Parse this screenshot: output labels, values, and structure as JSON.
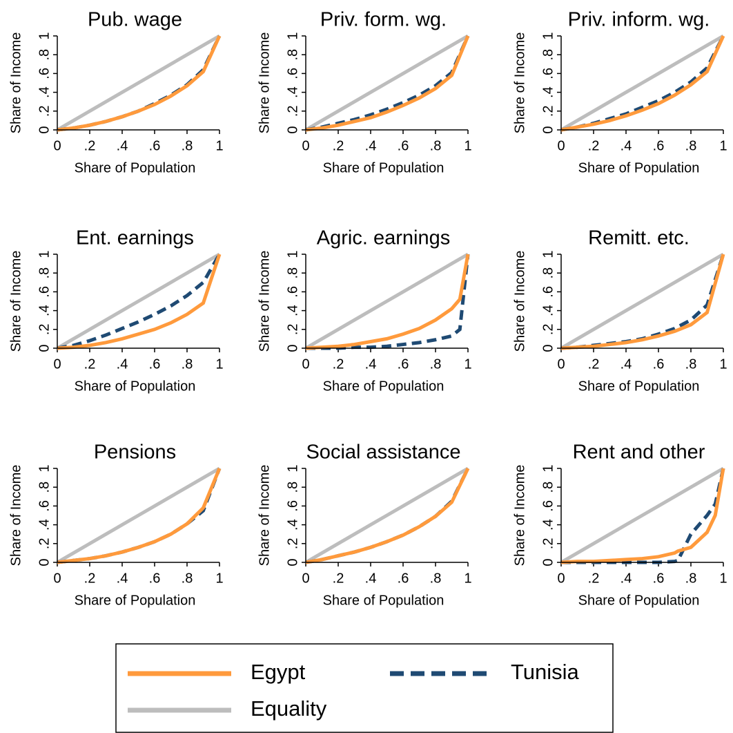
{
  "chart_data": [
    {
      "type": "line",
      "title": "Pub. wage",
      "xlabel": "Share of Population",
      "ylabel": "Share of Income",
      "x": [
        0,
        0.1,
        0.2,
        0.3,
        0.4,
        0.5,
        0.6,
        0.7,
        0.8,
        0.9,
        1
      ],
      "series": [
        {
          "name": "Egypt",
          "color": "#ff9a3c",
          "dash": false,
          "values": [
            0,
            0.02,
            0.05,
            0.09,
            0.14,
            0.2,
            0.27,
            0.36,
            0.47,
            0.62,
            1
          ]
        },
        {
          "name": "Tunisia",
          "color": "#1f4a73",
          "dash": true,
          "values": [
            0,
            0.02,
            0.05,
            0.09,
            0.14,
            0.2,
            0.28,
            0.37,
            0.48,
            0.64,
            1
          ]
        },
        {
          "name": "Equality",
          "color": "#bdbdbd",
          "dash": false,
          "values": [
            0,
            0.1,
            0.2,
            0.3,
            0.4,
            0.5,
            0.6,
            0.7,
            0.8,
            0.9,
            1
          ]
        }
      ],
      "xlim": [
        0,
        1
      ],
      "ylim": [
        0,
        1
      ],
      "xticks": [
        0,
        {
          "value": 0.2,
          "label": ".2"
        },
        {
          "value": 0.4,
          "label": ".4"
        },
        {
          "value": 0.6,
          "label": ".6"
        },
        {
          "value": 0.8,
          "label": ".8"
        },
        1
      ],
      "yticks": [
        0,
        {
          "value": 0.2,
          "label": ".2"
        },
        {
          "value": 0.4,
          "label": ".4"
        },
        {
          "value": 0.6,
          "label": ".6"
        },
        {
          "value": 0.8,
          "label": ".8"
        },
        1
      ]
    },
    {
      "type": "line",
      "title": "Priv. form. wg.",
      "xlabel": "Share of Population",
      "ylabel": "Share of Income",
      "x": [
        0,
        0.1,
        0.2,
        0.3,
        0.4,
        0.5,
        0.6,
        0.7,
        0.8,
        0.9,
        1
      ],
      "series": [
        {
          "name": "Egypt",
          "color": "#ff9a3c",
          "dash": false,
          "values": [
            0,
            0.02,
            0.05,
            0.09,
            0.13,
            0.19,
            0.26,
            0.34,
            0.44,
            0.58,
            1
          ]
        },
        {
          "name": "Tunisia",
          "color": "#1f4a73",
          "dash": true,
          "values": [
            0,
            0.03,
            0.07,
            0.11,
            0.16,
            0.22,
            0.29,
            0.37,
            0.47,
            0.61,
            1
          ]
        },
        {
          "name": "Equality",
          "color": "#bdbdbd",
          "dash": false,
          "values": [
            0,
            0.1,
            0.2,
            0.3,
            0.4,
            0.5,
            0.6,
            0.7,
            0.8,
            0.9,
            1
          ]
        }
      ],
      "xlim": [
        0,
        1
      ],
      "ylim": [
        0,
        1
      ],
      "xticks": [
        0,
        {
          "value": 0.2,
          "label": ".2"
        },
        {
          "value": 0.4,
          "label": ".4"
        },
        {
          "value": 0.6,
          "label": ".6"
        },
        {
          "value": 0.8,
          "label": ".8"
        },
        1
      ],
      "yticks": [
        0,
        {
          "value": 0.2,
          "label": ".2"
        },
        {
          "value": 0.4,
          "label": ".4"
        },
        {
          "value": 0.6,
          "label": ".6"
        },
        {
          "value": 0.8,
          "label": ".8"
        },
        1
      ]
    },
    {
      "type": "line",
      "title": "Priv. inform. wg.",
      "xlabel": "Share of Population",
      "ylabel": "Share of Income",
      "x": [
        0,
        0.1,
        0.2,
        0.3,
        0.4,
        0.5,
        0.6,
        0.7,
        0.8,
        0.9,
        1
      ],
      "series": [
        {
          "name": "Egypt",
          "color": "#ff9a3c",
          "dash": false,
          "values": [
            0,
            0.03,
            0.06,
            0.1,
            0.15,
            0.21,
            0.28,
            0.37,
            0.48,
            0.62,
            1
          ]
        },
        {
          "name": "Tunisia",
          "color": "#1f4a73",
          "dash": true,
          "values": [
            0,
            0.03,
            0.07,
            0.12,
            0.17,
            0.24,
            0.31,
            0.4,
            0.51,
            0.66,
            1
          ]
        },
        {
          "name": "Equality",
          "color": "#bdbdbd",
          "dash": false,
          "values": [
            0,
            0.1,
            0.2,
            0.3,
            0.4,
            0.5,
            0.6,
            0.7,
            0.8,
            0.9,
            1
          ]
        }
      ],
      "xlim": [
        0,
        1
      ],
      "ylim": [
        0,
        1
      ],
      "xticks": [
        0,
        {
          "value": 0.2,
          "label": ".2"
        },
        {
          "value": 0.4,
          "label": ".4"
        },
        {
          "value": 0.6,
          "label": ".6"
        },
        {
          "value": 0.8,
          "label": ".8"
        },
        1
      ],
      "yticks": [
        0,
        {
          "value": 0.2,
          "label": ".2"
        },
        {
          "value": 0.4,
          "label": ".4"
        },
        {
          "value": 0.6,
          "label": ".6"
        },
        {
          "value": 0.8,
          "label": ".8"
        },
        1
      ]
    },
    {
      "type": "line",
      "title": "Ent. earnings",
      "xlabel": "Share of Population",
      "ylabel": "Share of Income",
      "x": [
        0,
        0.1,
        0.2,
        0.3,
        0.4,
        0.5,
        0.6,
        0.7,
        0.8,
        0.9,
        1
      ],
      "series": [
        {
          "name": "Egypt",
          "color": "#ff9a3c",
          "dash": false,
          "values": [
            0,
            0.01,
            0.03,
            0.06,
            0.1,
            0.15,
            0.2,
            0.27,
            0.36,
            0.48,
            1
          ]
        },
        {
          "name": "Tunisia",
          "color": "#1f4a73",
          "dash": true,
          "values": [
            0,
            0.03,
            0.08,
            0.14,
            0.21,
            0.28,
            0.36,
            0.45,
            0.56,
            0.7,
            1
          ]
        },
        {
          "name": "Equality",
          "color": "#bdbdbd",
          "dash": false,
          "values": [
            0,
            0.1,
            0.2,
            0.3,
            0.4,
            0.5,
            0.6,
            0.7,
            0.8,
            0.9,
            1
          ]
        }
      ],
      "xlim": [
        0,
        1
      ],
      "ylim": [
        0,
        1
      ],
      "xticks": [
        0,
        {
          "value": 0.2,
          "label": ".2"
        },
        {
          "value": 0.4,
          "label": ".4"
        },
        {
          "value": 0.6,
          "label": ".6"
        },
        {
          "value": 0.8,
          "label": ".8"
        },
        1
      ],
      "yticks": [
        0,
        {
          "value": 0.2,
          "label": ".2"
        },
        {
          "value": 0.4,
          "label": ".4"
        },
        {
          "value": 0.6,
          "label": ".6"
        },
        {
          "value": 0.8,
          "label": ".8"
        },
        1
      ]
    },
    {
      "type": "line",
      "title": "Agric. earnings",
      "xlabel": "Share of Population",
      "ylabel": "Share of Income",
      "x": [
        0,
        0.1,
        0.2,
        0.3,
        0.4,
        0.5,
        0.6,
        0.7,
        0.8,
        0.9,
        0.95,
        1
      ],
      "series": [
        {
          "name": "Egypt",
          "color": "#ff9a3c",
          "dash": false,
          "values": [
            0,
            0.01,
            0.02,
            0.04,
            0.07,
            0.1,
            0.15,
            0.21,
            0.3,
            0.42,
            0.52,
            1
          ]
        },
        {
          "name": "Tunisia",
          "color": "#1f4a73",
          "dash": true,
          "values": [
            0,
            0,
            0,
            0.01,
            0.01,
            0.02,
            0.04,
            0.06,
            0.09,
            0.13,
            0.2,
            1
          ]
        },
        {
          "name": "Equality",
          "color": "#bdbdbd",
          "dash": false,
          "values": [
            0,
            0.1,
            0.2,
            0.3,
            0.4,
            0.5,
            0.6,
            0.7,
            0.8,
            0.9,
            0.95,
            1
          ]
        }
      ],
      "xlim": [
        0,
        1
      ],
      "ylim": [
        0,
        1
      ],
      "xticks": [
        0,
        {
          "value": 0.2,
          "label": ".2"
        },
        {
          "value": 0.4,
          "label": ".4"
        },
        {
          "value": 0.6,
          "label": ".6"
        },
        {
          "value": 0.8,
          "label": ".8"
        },
        1
      ],
      "yticks": [
        0,
        {
          "value": 0.2,
          "label": ".2"
        },
        {
          "value": 0.4,
          "label": ".4"
        },
        {
          "value": 0.6,
          "label": ".6"
        },
        {
          "value": 0.8,
          "label": ".8"
        },
        1
      ]
    },
    {
      "type": "line",
      "title": "Remitt. etc.",
      "xlabel": "Share of Population",
      "ylabel": "Share of Income",
      "x": [
        0,
        0.1,
        0.2,
        0.3,
        0.4,
        0.5,
        0.6,
        0.7,
        0.8,
        0.9,
        1
      ],
      "series": [
        {
          "name": "Egypt",
          "color": "#ff9a3c",
          "dash": false,
          "values": [
            0,
            0.01,
            0.02,
            0.04,
            0.06,
            0.09,
            0.13,
            0.18,
            0.25,
            0.38,
            1
          ]
        },
        {
          "name": "Tunisia",
          "color": "#1f4a73",
          "dash": true,
          "values": [
            0,
            0.01,
            0.03,
            0.05,
            0.07,
            0.1,
            0.15,
            0.21,
            0.3,
            0.46,
            1
          ]
        },
        {
          "name": "Equality",
          "color": "#bdbdbd",
          "dash": false,
          "values": [
            0,
            0.1,
            0.2,
            0.3,
            0.4,
            0.5,
            0.6,
            0.7,
            0.8,
            0.9,
            1
          ]
        }
      ],
      "xlim": [
        0,
        1
      ],
      "ylim": [
        0,
        1
      ],
      "xticks": [
        0,
        {
          "value": 0.2,
          "label": ".2"
        },
        {
          "value": 0.4,
          "label": ".4"
        },
        {
          "value": 0.6,
          "label": ".6"
        },
        {
          "value": 0.8,
          "label": ".8"
        },
        1
      ],
      "yticks": [
        0,
        {
          "value": 0.2,
          "label": ".2"
        },
        {
          "value": 0.4,
          "label": ".4"
        },
        {
          "value": 0.6,
          "label": ".6"
        },
        {
          "value": 0.8,
          "label": ".8"
        },
        1
      ]
    },
    {
      "type": "line",
      "title": "Pensions",
      "xlabel": "Share of Population",
      "ylabel": "Share of Income",
      "x": [
        0,
        0.1,
        0.2,
        0.3,
        0.4,
        0.5,
        0.6,
        0.7,
        0.8,
        0.9,
        1
      ],
      "series": [
        {
          "name": "Egypt",
          "color": "#ff9a3c",
          "dash": false,
          "values": [
            0,
            0.02,
            0.04,
            0.07,
            0.11,
            0.16,
            0.22,
            0.3,
            0.41,
            0.58,
            1
          ]
        },
        {
          "name": "Tunisia",
          "color": "#1f4a73",
          "dash": true,
          "values": [
            0,
            0.02,
            0.04,
            0.07,
            0.11,
            0.16,
            0.22,
            0.3,
            0.41,
            0.55,
            1
          ]
        },
        {
          "name": "Equality",
          "color": "#bdbdbd",
          "dash": false,
          "values": [
            0,
            0.1,
            0.2,
            0.3,
            0.4,
            0.5,
            0.6,
            0.7,
            0.8,
            0.9,
            1
          ]
        }
      ],
      "xlim": [
        0,
        1
      ],
      "ylim": [
        0,
        1
      ],
      "xticks": [
        0,
        {
          "value": 0.2,
          "label": ".2"
        },
        {
          "value": 0.4,
          "label": ".4"
        },
        {
          "value": 0.6,
          "label": ".6"
        },
        {
          "value": 0.8,
          "label": ".8"
        },
        1
      ],
      "yticks": [
        0,
        {
          "value": 0.2,
          "label": ".2"
        },
        {
          "value": 0.4,
          "label": ".4"
        },
        {
          "value": 0.6,
          "label": ".6"
        },
        {
          "value": 0.8,
          "label": ".8"
        },
        1
      ]
    },
    {
      "type": "line",
      "title": "Social assistance",
      "xlabel": "Share of Population",
      "ylabel": "Share of Income",
      "x": [
        0,
        0.1,
        0.2,
        0.3,
        0.4,
        0.5,
        0.6,
        0.7,
        0.8,
        0.9,
        1
      ],
      "series": [
        {
          "name": "Egypt",
          "color": "#ff9a3c",
          "dash": false,
          "values": [
            0,
            0.03,
            0.07,
            0.11,
            0.16,
            0.22,
            0.29,
            0.38,
            0.49,
            0.64,
            1
          ]
        },
        {
          "name": "Tunisia",
          "color": "#1f4a73",
          "dash": true,
          "values": [
            0,
            0.03,
            0.07,
            0.11,
            0.16,
            0.22,
            0.29,
            0.38,
            0.49,
            0.65,
            1
          ]
        },
        {
          "name": "Equality",
          "color": "#bdbdbd",
          "dash": false,
          "values": [
            0,
            0.1,
            0.2,
            0.3,
            0.4,
            0.5,
            0.6,
            0.7,
            0.8,
            0.9,
            1
          ]
        }
      ],
      "xlim": [
        0,
        1
      ],
      "ylim": [
        0,
        1
      ],
      "xticks": [
        0,
        {
          "value": 0.2,
          "label": ".2"
        },
        {
          "value": 0.4,
          "label": ".4"
        },
        {
          "value": 0.6,
          "label": ".6"
        },
        {
          "value": 0.8,
          "label": ".8"
        },
        1
      ],
      "yticks": [
        0,
        {
          "value": 0.2,
          "label": ".2"
        },
        {
          "value": 0.4,
          "label": ".4"
        },
        {
          "value": 0.6,
          "label": ".6"
        },
        {
          "value": 0.8,
          "label": ".8"
        },
        1
      ]
    },
    {
      "type": "line",
      "title": "Rent and other",
      "xlabel": "Share of Population",
      "ylabel": "Share of Income",
      "x": [
        0,
        0.1,
        0.2,
        0.3,
        0.4,
        0.5,
        0.6,
        0.7,
        0.72,
        0.8,
        0.9,
        0.95,
        1
      ],
      "series": [
        {
          "name": "Egypt",
          "color": "#ff9a3c",
          "dash": false,
          "values": [
            0,
            0.01,
            0.01,
            0.02,
            0.03,
            0.04,
            0.06,
            0.1,
            0.12,
            0.16,
            0.32,
            0.5,
            1
          ]
        },
        {
          "name": "Tunisia",
          "color": "#1f4a73",
          "dash": true,
          "values": [
            0,
            0,
            0,
            0,
            0,
            0,
            0,
            0.01,
            0.02,
            0.3,
            0.5,
            0.62,
            1
          ]
        },
        {
          "name": "Equality",
          "color": "#bdbdbd",
          "dash": false,
          "values": [
            0,
            0.1,
            0.2,
            0.3,
            0.4,
            0.5,
            0.6,
            0.7,
            0.72,
            0.8,
            0.9,
            0.95,
            1
          ]
        }
      ],
      "xlim": [
        0,
        1
      ],
      "ylim": [
        0,
        1
      ],
      "xticks": [
        0,
        {
          "value": 0.2,
          "label": ".2"
        },
        {
          "value": 0.4,
          "label": ".4"
        },
        {
          "value": 0.6,
          "label": ".6"
        },
        {
          "value": 0.8,
          "label": ".8"
        },
        1
      ],
      "yticks": [
        0,
        {
          "value": 0.2,
          "label": ".2"
        },
        {
          "value": 0.4,
          "label": ".4"
        },
        {
          "value": 0.6,
          "label": ".6"
        },
        {
          "value": 0.8,
          "label": ".8"
        },
        1
      ]
    }
  ]
}
